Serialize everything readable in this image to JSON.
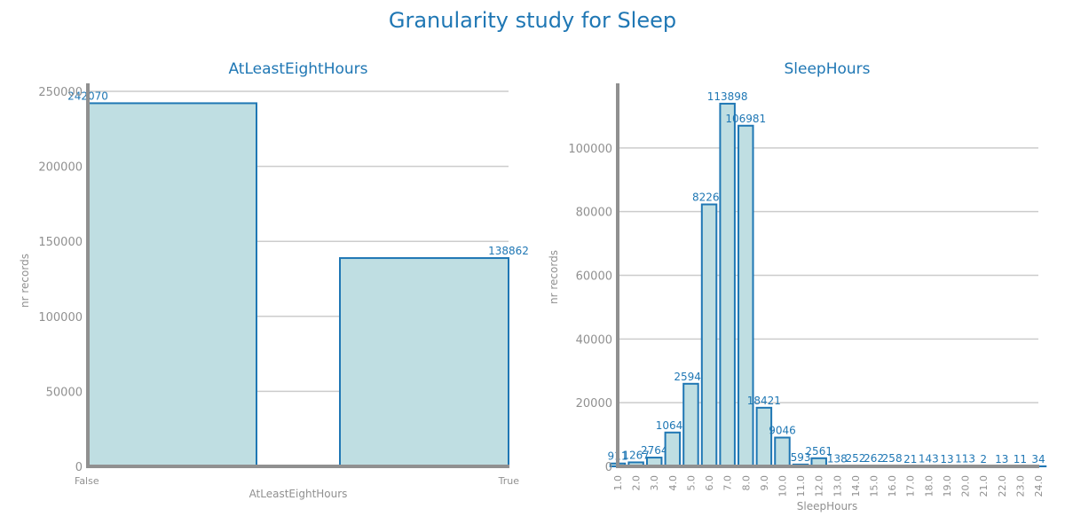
{
  "figure_title": "Granularity study for Sleep",
  "colors": {
    "bar_fill": "#bfdee2",
    "bar_edge": "#1f77b4",
    "title": "#1f77b4",
    "axis": "#909090",
    "grid": "#cccccc"
  },
  "chart_data": [
    {
      "type": "bar",
      "title": "AtLeastEightHours",
      "xlabel": "AtLeastEightHours",
      "ylabel": "nr records",
      "categories": [
        "False",
        "True"
      ],
      "values": [
        242070,
        138862
      ],
      "value_labels": [
        "242070",
        "138862"
      ],
      "ylim": [
        0,
        250000
      ],
      "yticks": [
        0,
        50000,
        100000,
        150000,
        200000,
        250000
      ],
      "ytick_labels": [
        "0",
        "50000",
        "100000",
        "150000",
        "200000",
        "250000"
      ],
      "grid": "horizontal"
    },
    {
      "type": "bar",
      "title": "SleepHours",
      "xlabel": "SleepHours",
      "ylabel": "nr records",
      "categories": [
        "1.0",
        "2.0",
        "3.0",
        "4.0",
        "5.0",
        "6.0",
        "7.0",
        "8.0",
        "9.0",
        "10.0",
        "11.0",
        "12.0",
        "13.0",
        "14.0",
        "15.0",
        "16.0",
        "17.0",
        "18.0",
        "19.0",
        "20.0",
        "21.0",
        "22.0",
        "23.0",
        "24.0"
      ],
      "values": [
        911,
        1267,
        2764,
        10642,
        25944,
        82268,
        113898,
        106981,
        18421,
        9046,
        593,
        2561,
        138,
        252,
        262,
        258,
        21,
        143,
        13,
        113,
        2,
        13,
        11,
        34
      ],
      "value_labels": [
        "911",
        "1267",
        "2764",
        "10642",
        "25944",
        "82268",
        "113898",
        "106981",
        "18421",
        "9046",
        "593",
        "2561",
        "138",
        "252",
        "262",
        "258",
        "21",
        "143",
        "13",
        "113",
        "2",
        "13",
        "11",
        "34"
      ],
      "ylim": [
        0,
        120000
      ],
      "yticks": [
        0,
        20000,
        40000,
        60000,
        80000,
        100000
      ],
      "ytick_labels": [
        "0",
        "20000",
        "40000",
        "60000",
        "80000",
        "100000"
      ],
      "grid": "horizontal"
    }
  ]
}
